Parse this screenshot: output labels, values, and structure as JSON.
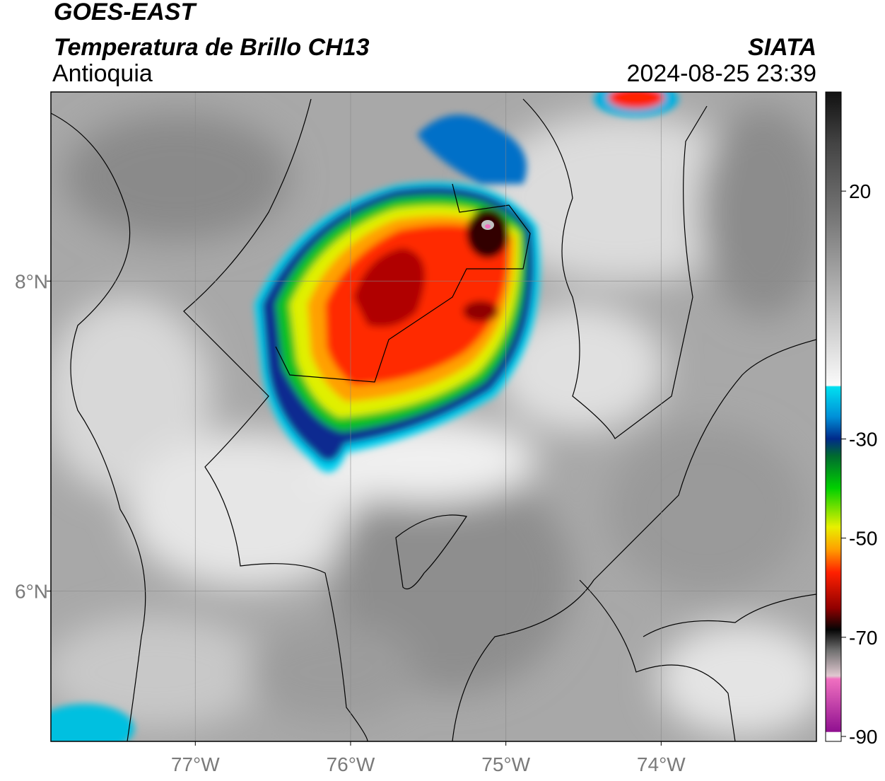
{
  "header": {
    "title": "GOES-EAST",
    "subtitle": "Temperatura de Brillo CH13",
    "region": "Antioquia",
    "source": "SIATA",
    "timestamp": "2024-08-25 23:39"
  },
  "map": {
    "xlim": [
      -77.93,
      -73.0
    ],
    "ylim": [
      5.03,
      9.22
    ],
    "xticks": [
      {
        "value": -77,
        "label": "77°W"
      },
      {
        "value": -76,
        "label": "76°W"
      },
      {
        "value": -75,
        "label": "75°W"
      },
      {
        "value": -74,
        "label": "74°W"
      }
    ],
    "yticks": [
      {
        "value": 6,
        "label": "6°N"
      },
      {
        "value": 8,
        "label": "8°N"
      }
    ],
    "grid": true
  },
  "colorbar": {
    "lim": [
      -91,
      40
    ],
    "ticks": [
      -90,
      -70,
      -50,
      -30,
      20
    ]
  }
}
